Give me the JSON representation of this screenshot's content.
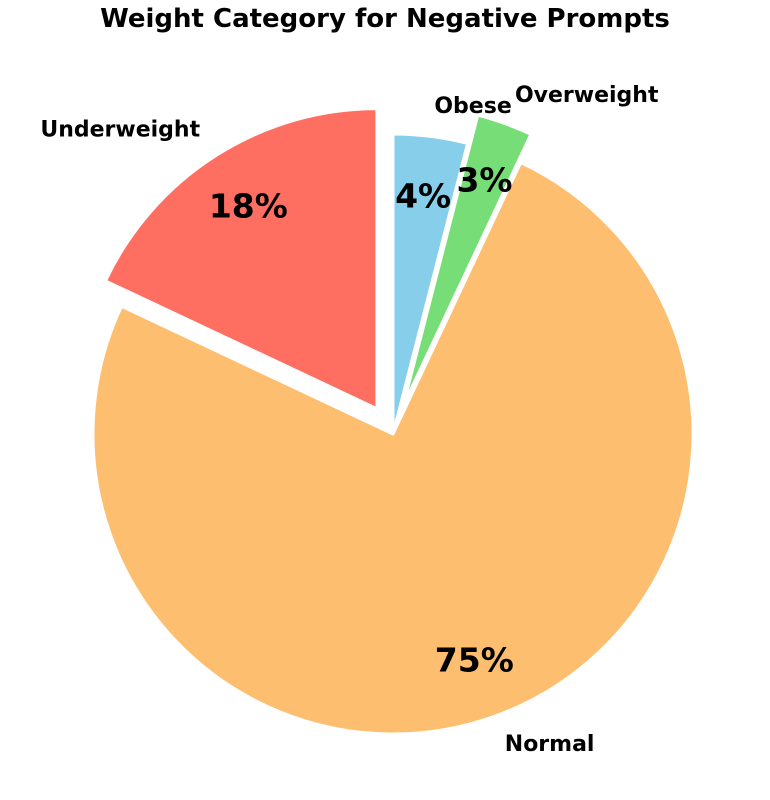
{
  "chart_data": {
    "type": "pie",
    "title": "Weight Category for Negative Prompts",
    "slices": [
      {
        "label": "Underweight",
        "value": 18,
        "display": "18%",
        "color": "#FF6F61",
        "exploded": true
      },
      {
        "label": "Normal",
        "value": 75,
        "display": "75%",
        "color": "#FDBE6F",
        "exploded": false
      },
      {
        "label": "Overweight",
        "value": 3,
        "display": "3%",
        "color": "#77DD77",
        "exploded": true
      },
      {
        "label": "Obese",
        "value": 4,
        "display": "4%",
        "color": "#87CEEB",
        "exploded": false
      }
    ],
    "start_angle_deg": 90,
    "direction": "counterclockwise",
    "legend": "none"
  }
}
